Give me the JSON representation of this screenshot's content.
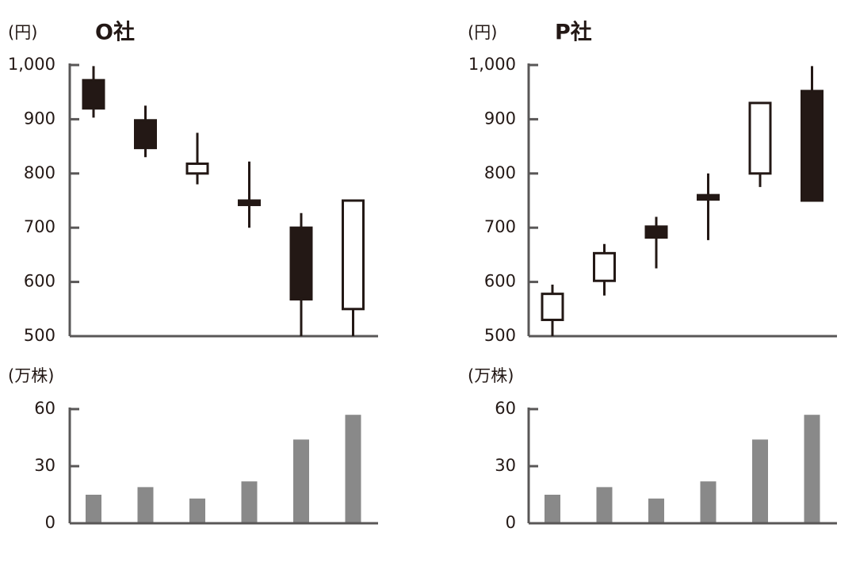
{
  "colors": {
    "ink": "#231815",
    "bullish_fill": "#ffffff",
    "bearish_fill": "#231815",
    "volume_bar": "#898989",
    "axis": "#595757"
  },
  "chart_data": [
    {
      "type": "candlestick",
      "title": "O社",
      "ylabel": "(円)",
      "ylim": [
        500,
        1000
      ],
      "yticks": [
        "1,000",
        "900",
        "800",
        "700",
        "600",
        "500"
      ],
      "candles": [
        {
          "open": 972,
          "high": 998,
          "low": 903,
          "close": 920
        },
        {
          "open": 898,
          "high": 925,
          "low": 830,
          "close": 847
        },
        {
          "open": 800,
          "high": 875,
          "low": 780,
          "close": 818
        },
        {
          "open": 750,
          "high": 822,
          "low": 700,
          "close": 742
        },
        {
          "open": 700,
          "high": 727,
          "low": 500,
          "close": 568
        },
        {
          "open": 550,
          "high": 750,
          "low": 500,
          "close": 750
        }
      ]
    },
    {
      "type": "bar",
      "ylabel": "(万株)",
      "ylim": [
        0,
        60
      ],
      "yticks": [
        "60",
        "30",
        "0"
      ],
      "values": [
        15,
        19,
        13,
        22,
        44,
        57
      ]
    },
    {
      "type": "candlestick",
      "title": "P社",
      "ylabel": "(円)",
      "ylim": [
        500,
        1000
      ],
      "yticks": [
        "1,000",
        "900",
        "800",
        "700",
        "600",
        "500"
      ],
      "candles": [
        {
          "open": 530,
          "high": 595,
          "low": 500,
          "close": 578
        },
        {
          "open": 602,
          "high": 670,
          "low": 575,
          "close": 653
        },
        {
          "open": 702,
          "high": 720,
          "low": 625,
          "close": 682
        },
        {
          "open": 760,
          "high": 800,
          "low": 677,
          "close": 752
        },
        {
          "open": 800,
          "high": 930,
          "low": 775,
          "close": 930
        },
        {
          "open": 952,
          "high": 998,
          "low": 750,
          "close": 750
        }
      ]
    },
    {
      "type": "bar",
      "ylabel": "(万株)",
      "ylim": [
        0,
        60
      ],
      "yticks": [
        "60",
        "30",
        "0"
      ],
      "values": [
        15,
        19,
        13,
        22,
        44,
        57
      ]
    }
  ]
}
